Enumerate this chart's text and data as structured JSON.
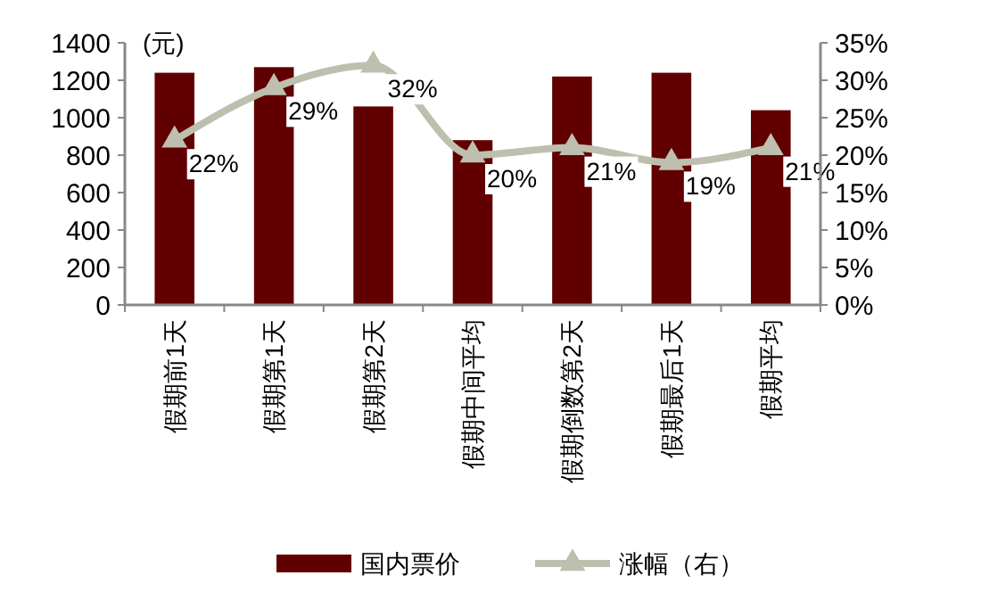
{
  "chart_data": {
    "type": "bar",
    "ylabel": "(元)",
    "categories": [
      "假期前1天",
      "假期第1天",
      "假期第2天",
      "假期中间平均",
      "假期倒数第2天",
      "假期最后1天",
      "假期平均"
    ],
    "series": [
      {
        "name": "国内票价",
        "color": "#600000",
        "values": [
          1240,
          1270,
          1060,
          880,
          1220,
          1240,
          1040
        ]
      },
      {
        "name": "涨幅（右）",
        "type": "line",
        "axis": "y2",
        "color": "#bfbfaf",
        "marker": "triangle",
        "data_labels": true,
        "value_labels": [
          "22%",
          "29%",
          "32%",
          "20%",
          "21%",
          "19%",
          "21%"
        ],
        "values": [
          22,
          29,
          32,
          20,
          21,
          19,
          21
        ]
      }
    ],
    "ylim": [
      0,
      1400
    ],
    "yticks": [
      0,
      200,
      400,
      600,
      800,
      1000,
      1200,
      1400
    ],
    "y2lim": [
      0,
      35
    ],
    "y2ticks": [
      {
        "value": 0,
        "label": "0%"
      },
      {
        "value": 5,
        "label": "5%"
      },
      {
        "value": 10,
        "label": "10%"
      },
      {
        "value": 15,
        "label": "15%"
      },
      {
        "value": 20,
        "label": "20%"
      },
      {
        "value": 25,
        "label": "25%"
      },
      {
        "value": 30,
        "label": "30%"
      },
      {
        "value": 35,
        "label": "35%"
      }
    ],
    "grid": false,
    "legend": "bottom"
  }
}
